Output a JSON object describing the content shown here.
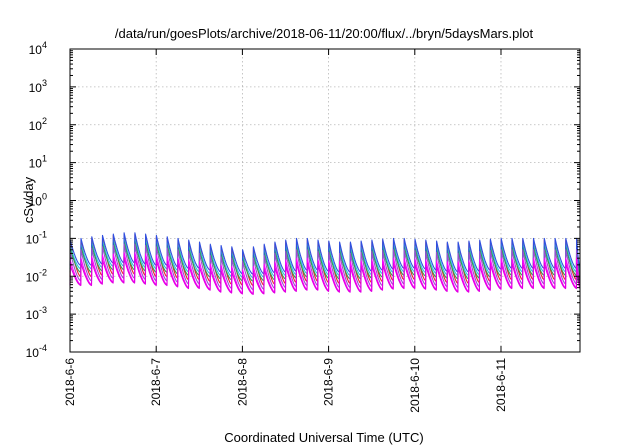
{
  "chart_data": {
    "type": "line",
    "title": "/data/run/goesPlots/archive/2018-06-11/20:00/flux/../bryn/5daysMars.plot",
    "xlabel": "Coordinated Universal Time (UTC)",
    "ylabel": "cSv/day",
    "x_type": "date",
    "xlim": [
      "2018-06-06T00:00",
      "2018-06-11T22:00"
    ],
    "y_scale": "log",
    "ylim": [
      0.0001,
      10000
    ],
    "grid": true,
    "legend": "none",
    "x_ticks": [
      {
        "label": "2018-6-6",
        "value": "2018-06-06"
      },
      {
        "label": "2018-6-7",
        "value": "2018-06-07"
      },
      {
        "label": "2018-6-8",
        "value": "2018-06-08"
      },
      {
        "label": "2018-6-9",
        "value": "2018-06-09"
      },
      {
        "label": "2018-6-10",
        "value": "2018-06-10"
      },
      {
        "label": "2018-6-11",
        "value": "2018-06-11"
      }
    ],
    "y_ticks": [
      {
        "base": "10",
        "exp": "-4",
        "value": 0.0001
      },
      {
        "base": "10",
        "exp": "-3",
        "value": 0.001
      },
      {
        "base": "10",
        "exp": "-2",
        "value": 0.01
      },
      {
        "base": "10",
        "exp": "-1",
        "value": 0.1
      },
      {
        "base": "10",
        "exp": "0",
        "value": 1
      },
      {
        "base": "10",
        "exp": "1",
        "value": 10
      },
      {
        "base": "10",
        "exp": "2",
        "value": 100
      },
      {
        "base": "10",
        "exp": "3",
        "value": 1000
      },
      {
        "base": "10",
        "exp": "4",
        "value": 10000
      }
    ],
    "pattern": {
      "sawtooth_period_hours": 3,
      "peak_times": [
        "2018-06-06T00:00",
        "2018-06-06T03:00",
        "2018-06-06T06:00",
        "2018-06-06T09:00",
        "2018-06-06T12:00",
        "2018-06-06T15:00",
        "2018-06-06T18:00",
        "2018-06-06T21:00",
        "2018-06-07T00:00",
        "2018-06-07T03:00",
        "2018-06-07T06:00",
        "2018-06-07T09:00",
        "2018-06-07T12:00",
        "2018-06-07T15:00",
        "2018-06-07T18:00",
        "2018-06-07T21:00",
        "2018-06-08T00:00",
        "2018-06-08T03:00",
        "2018-06-08T06:00",
        "2018-06-08T09:00",
        "2018-06-08T12:00",
        "2018-06-08T15:00",
        "2018-06-08T18:00",
        "2018-06-08T21:00",
        "2018-06-09T00:00",
        "2018-06-09T03:00",
        "2018-06-09T06:00",
        "2018-06-09T09:00",
        "2018-06-09T12:00",
        "2018-06-09T15:00",
        "2018-06-09T18:00",
        "2018-06-09T21:00",
        "2018-06-10T00:00",
        "2018-06-10T03:00",
        "2018-06-10T06:00",
        "2018-06-10T09:00",
        "2018-06-10T12:00",
        "2018-06-10T15:00",
        "2018-06-10T18:00",
        "2018-06-10T21:00",
        "2018-06-11T00:00",
        "2018-06-11T03:00",
        "2018-06-11T06:00",
        "2018-06-11T09:00",
        "2018-06-11T12:00",
        "2018-06-11T15:00",
        "2018-06-11T18:00",
        "2018-06-11T21:00"
      ],
      "top_envelope_peak": [
        0.09,
        0.1,
        0.11,
        0.12,
        0.13,
        0.14,
        0.14,
        0.13,
        0.12,
        0.11,
        0.1,
        0.09,
        0.08,
        0.07,
        0.065,
        0.06,
        0.05,
        0.06,
        0.07,
        0.08,
        0.09,
        0.1,
        0.1,
        0.09,
        0.085,
        0.08,
        0.08,
        0.085,
        0.09,
        0.095,
        0.1,
        0.1,
        0.095,
        0.09,
        0.085,
        0.08,
        0.08,
        0.085,
        0.09,
        0.095,
        0.1,
        0.1,
        0.1,
        0.1,
        0.1,
        0.1,
        0.1,
        0.1
      ],
      "bottom_envelope_trough": [
        0.006,
        0.006,
        0.0065,
        0.007,
        0.007,
        0.007,
        0.0065,
        0.006,
        0.006,
        0.0055,
        0.005,
        0.005,
        0.0045,
        0.004,
        0.0038,
        0.0036,
        0.0035,
        0.0036,
        0.0038,
        0.004,
        0.0042,
        0.0045,
        0.0045,
        0.0042,
        0.004,
        0.004,
        0.004,
        0.0042,
        0.0045,
        0.0048,
        0.005,
        0.005,
        0.0048,
        0.0045,
        0.0042,
        0.004,
        0.004,
        0.0042,
        0.0045,
        0.0048,
        0.005,
        0.005,
        0.005,
        0.005,
        0.005,
        0.005,
        0.005,
        0.005
      ]
    },
    "series": [
      {
        "color": "#e8232a",
        "peak_factor": 0.92,
        "trough_factor": 1.6
      },
      {
        "color": "#2ac3e4",
        "peak_factor": 0.72,
        "trough_factor": 2.6
      },
      {
        "color": "#30a050",
        "peak_factor": 0.6,
        "trough_factor": 2.1
      },
      {
        "color": "#3050e0",
        "peak_factor": 1.0,
        "trough_factor": 3.2
      },
      {
        "color": "#9a4fd0",
        "peak_factor": 0.5,
        "trough_factor": 1.25
      },
      {
        "color": "#ff00ff",
        "peak_factor": 0.3,
        "trough_factor": 1.0
      },
      {
        "color": "#e000e0",
        "peak_factor": 0.22,
        "trough_factor": 0.95
      }
    ]
  }
}
